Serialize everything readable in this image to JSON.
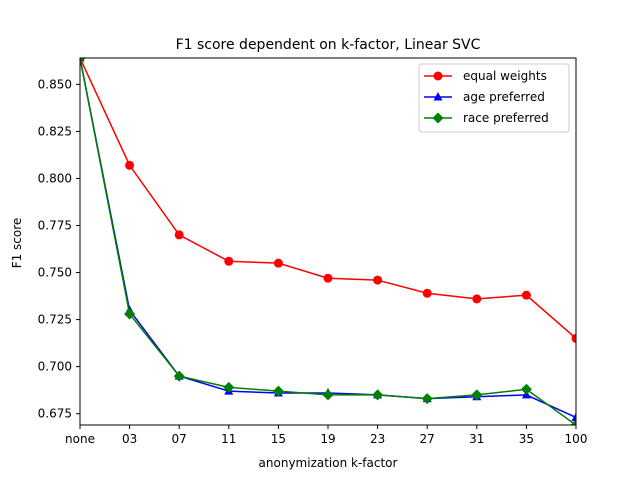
{
  "chart_data": {
    "type": "line",
    "title": "F1 score dependent on k-factor, Linear SVC",
    "xlabel": "anonymization k-factor",
    "ylabel": "F1 score",
    "categories": [
      "none",
      "03",
      "07",
      "11",
      "15",
      "19",
      "23",
      "27",
      "31",
      "35",
      "100"
    ],
    "ylim": [
      0.669,
      0.864
    ],
    "yticks": [
      0.675,
      0.7,
      0.725,
      0.75,
      0.775,
      0.8,
      0.825,
      0.85
    ],
    "ytick_labels": [
      "0.675",
      "0.700",
      "0.725",
      "0.750",
      "0.775",
      "0.800",
      "0.825",
      "0.850"
    ],
    "grid": false,
    "legend_position": "top-right",
    "series": [
      {
        "name": "equal weights",
        "color": "#ff0000",
        "marker": "circle",
        "values": [
          0.864,
          0.807,
          0.77,
          0.756,
          0.755,
          0.747,
          0.746,
          0.739,
          0.736,
          0.738,
          0.715
        ]
      },
      {
        "name": "age preferred",
        "color": "#0000ff",
        "marker": "triangle",
        "values": [
          0.864,
          0.73,
          0.695,
          0.687,
          0.686,
          0.686,
          0.685,
          0.683,
          0.684,
          0.685,
          0.673
        ]
      },
      {
        "name": "race preferred",
        "color": "#008000",
        "marker": "diamond",
        "values": [
          0.864,
          0.728,
          0.695,
          0.689,
          0.687,
          0.685,
          0.685,
          0.683,
          0.685,
          0.688,
          0.669
        ]
      }
    ]
  }
}
